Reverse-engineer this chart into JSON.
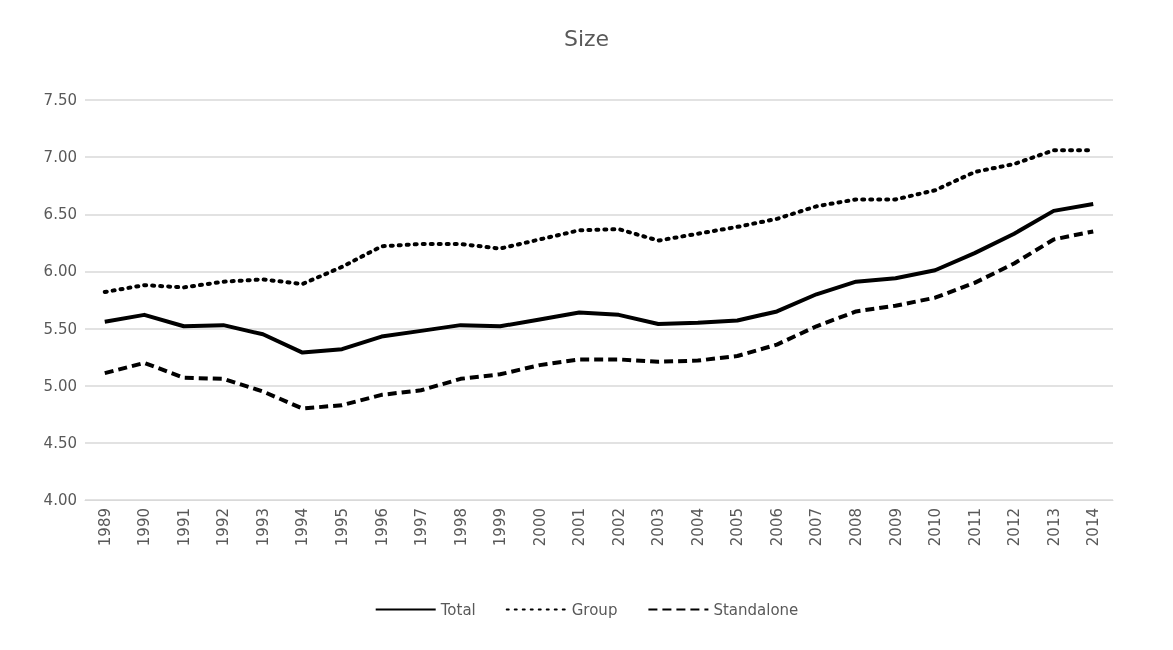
{
  "chart_data": {
    "type": "line",
    "title": "Size",
    "categories": [
      "1989",
      "1990",
      "1991",
      "1992",
      "1993",
      "1994",
      "1995",
      "1996",
      "1997",
      "1998",
      "1999",
      "2000",
      "2001",
      "2002",
      "2003",
      "2004",
      "2005",
      "2006",
      "2007",
      "2008",
      "2009",
      "2010",
      "2011",
      "2012",
      "2013",
      "2014"
    ],
    "series": [
      {
        "name": "Total",
        "color": "#000000",
        "line_style": "solid",
        "values": [
          5.56,
          5.62,
          5.52,
          5.53,
          5.45,
          5.29,
          5.32,
          5.43,
          5.48,
          5.53,
          5.52,
          5.58,
          5.64,
          5.62,
          5.54,
          5.55,
          5.57,
          5.65,
          5.8,
          5.91,
          5.94,
          6.01,
          6.16,
          6.33,
          6.53,
          6.59
        ]
      },
      {
        "name": "Group",
        "color": "#000000",
        "line_style": "dotted",
        "values": [
          5.82,
          5.88,
          5.86,
          5.91,
          5.93,
          5.89,
          6.04,
          6.22,
          6.24,
          6.24,
          6.2,
          6.28,
          6.36,
          6.37,
          6.27,
          6.33,
          6.39,
          6.46,
          6.57,
          6.63,
          6.63,
          6.71,
          6.87,
          6.94,
          7.06,
          7.06
        ]
      },
      {
        "name": "Standalone",
        "color": "#000000",
        "line_style": "dashed",
        "values": [
          5.11,
          5.2,
          5.07,
          5.06,
          4.95,
          4.8,
          4.83,
          4.92,
          4.96,
          5.06,
          5.1,
          5.18,
          5.23,
          5.23,
          5.21,
          5.22,
          5.26,
          5.36,
          5.52,
          5.65,
          5.7,
          5.77,
          5.9,
          6.07,
          6.28,
          6.35
        ]
      }
    ],
    "ylim": [
      4,
      7.5
    ],
    "yticks": [
      {
        "value": 4,
        "label": "4.00"
      },
      {
        "value": 4.5,
        "label": "4.50"
      },
      {
        "value": 5,
        "label": "5.00"
      },
      {
        "value": 5.5,
        "label": "5.50"
      },
      {
        "value": 6,
        "label": "6.00"
      },
      {
        "value": 6.5,
        "label": "6.50"
      },
      {
        "value": 7,
        "label": "7.00"
      },
      {
        "value": 7.5,
        "label": "7.50"
      }
    ],
    "grid": "y",
    "legend": "bottom",
    "marker": "none"
  }
}
